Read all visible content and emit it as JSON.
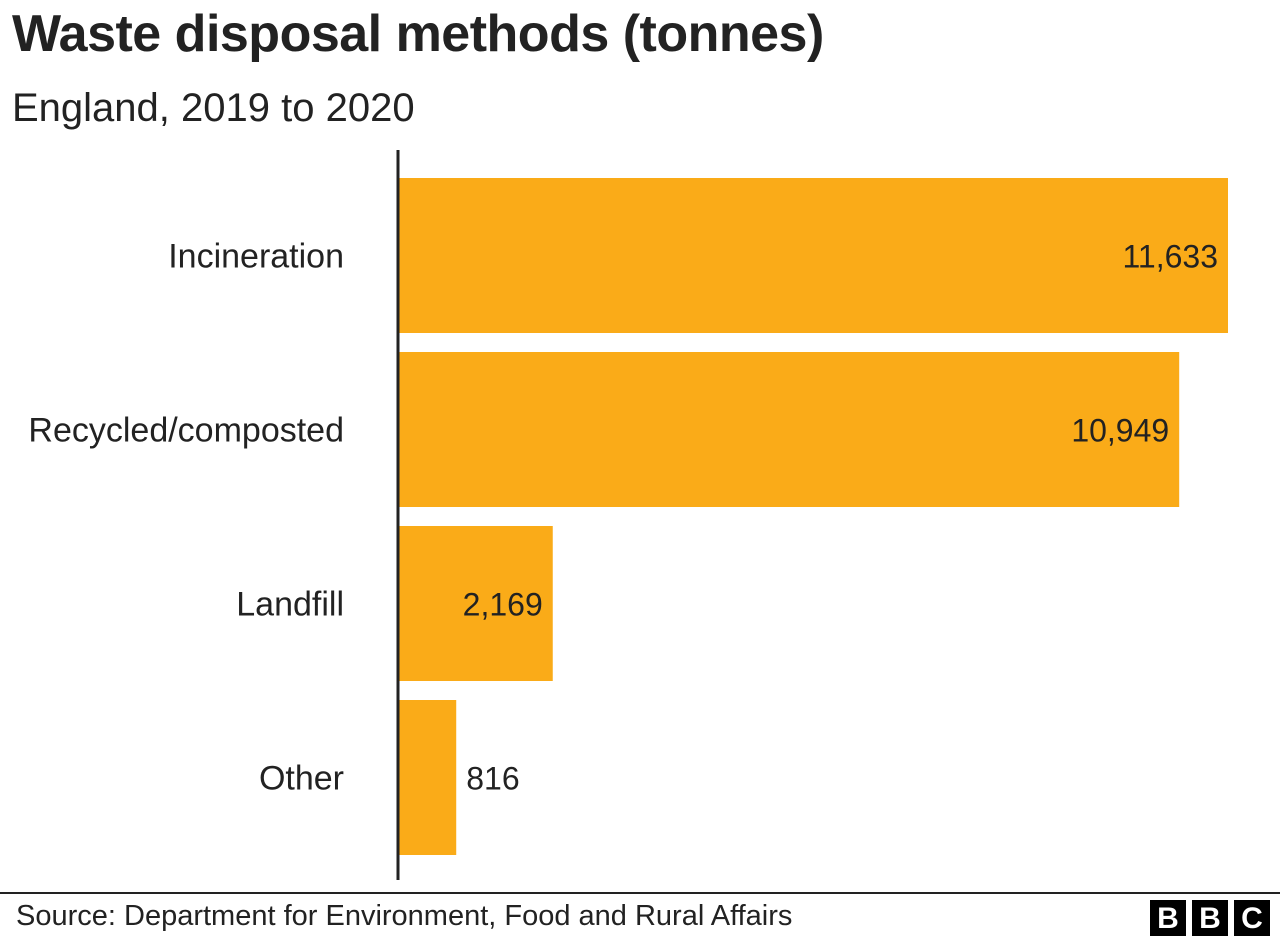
{
  "title": "Waste disposal methods (tonnes)",
  "subtitle": "England, 2019 to 2020",
  "chart_data": {
    "type": "bar",
    "orientation": "horizontal",
    "categories": [
      "Incineration",
      "Recycled/composted",
      "Landfill",
      "Other"
    ],
    "values": [
      11633,
      10949,
      2169,
      816
    ],
    "value_labels": [
      "11,633",
      "10,949",
      "2,169",
      "816"
    ],
    "xlim": [
      0,
      11633
    ],
    "grid": false,
    "legend": "none",
    "bar_color": "#faab18"
  },
  "source": "Source: Department for Environment, Food and Rural Affairs",
  "logo": {
    "letters": [
      "B",
      "B",
      "C"
    ]
  }
}
